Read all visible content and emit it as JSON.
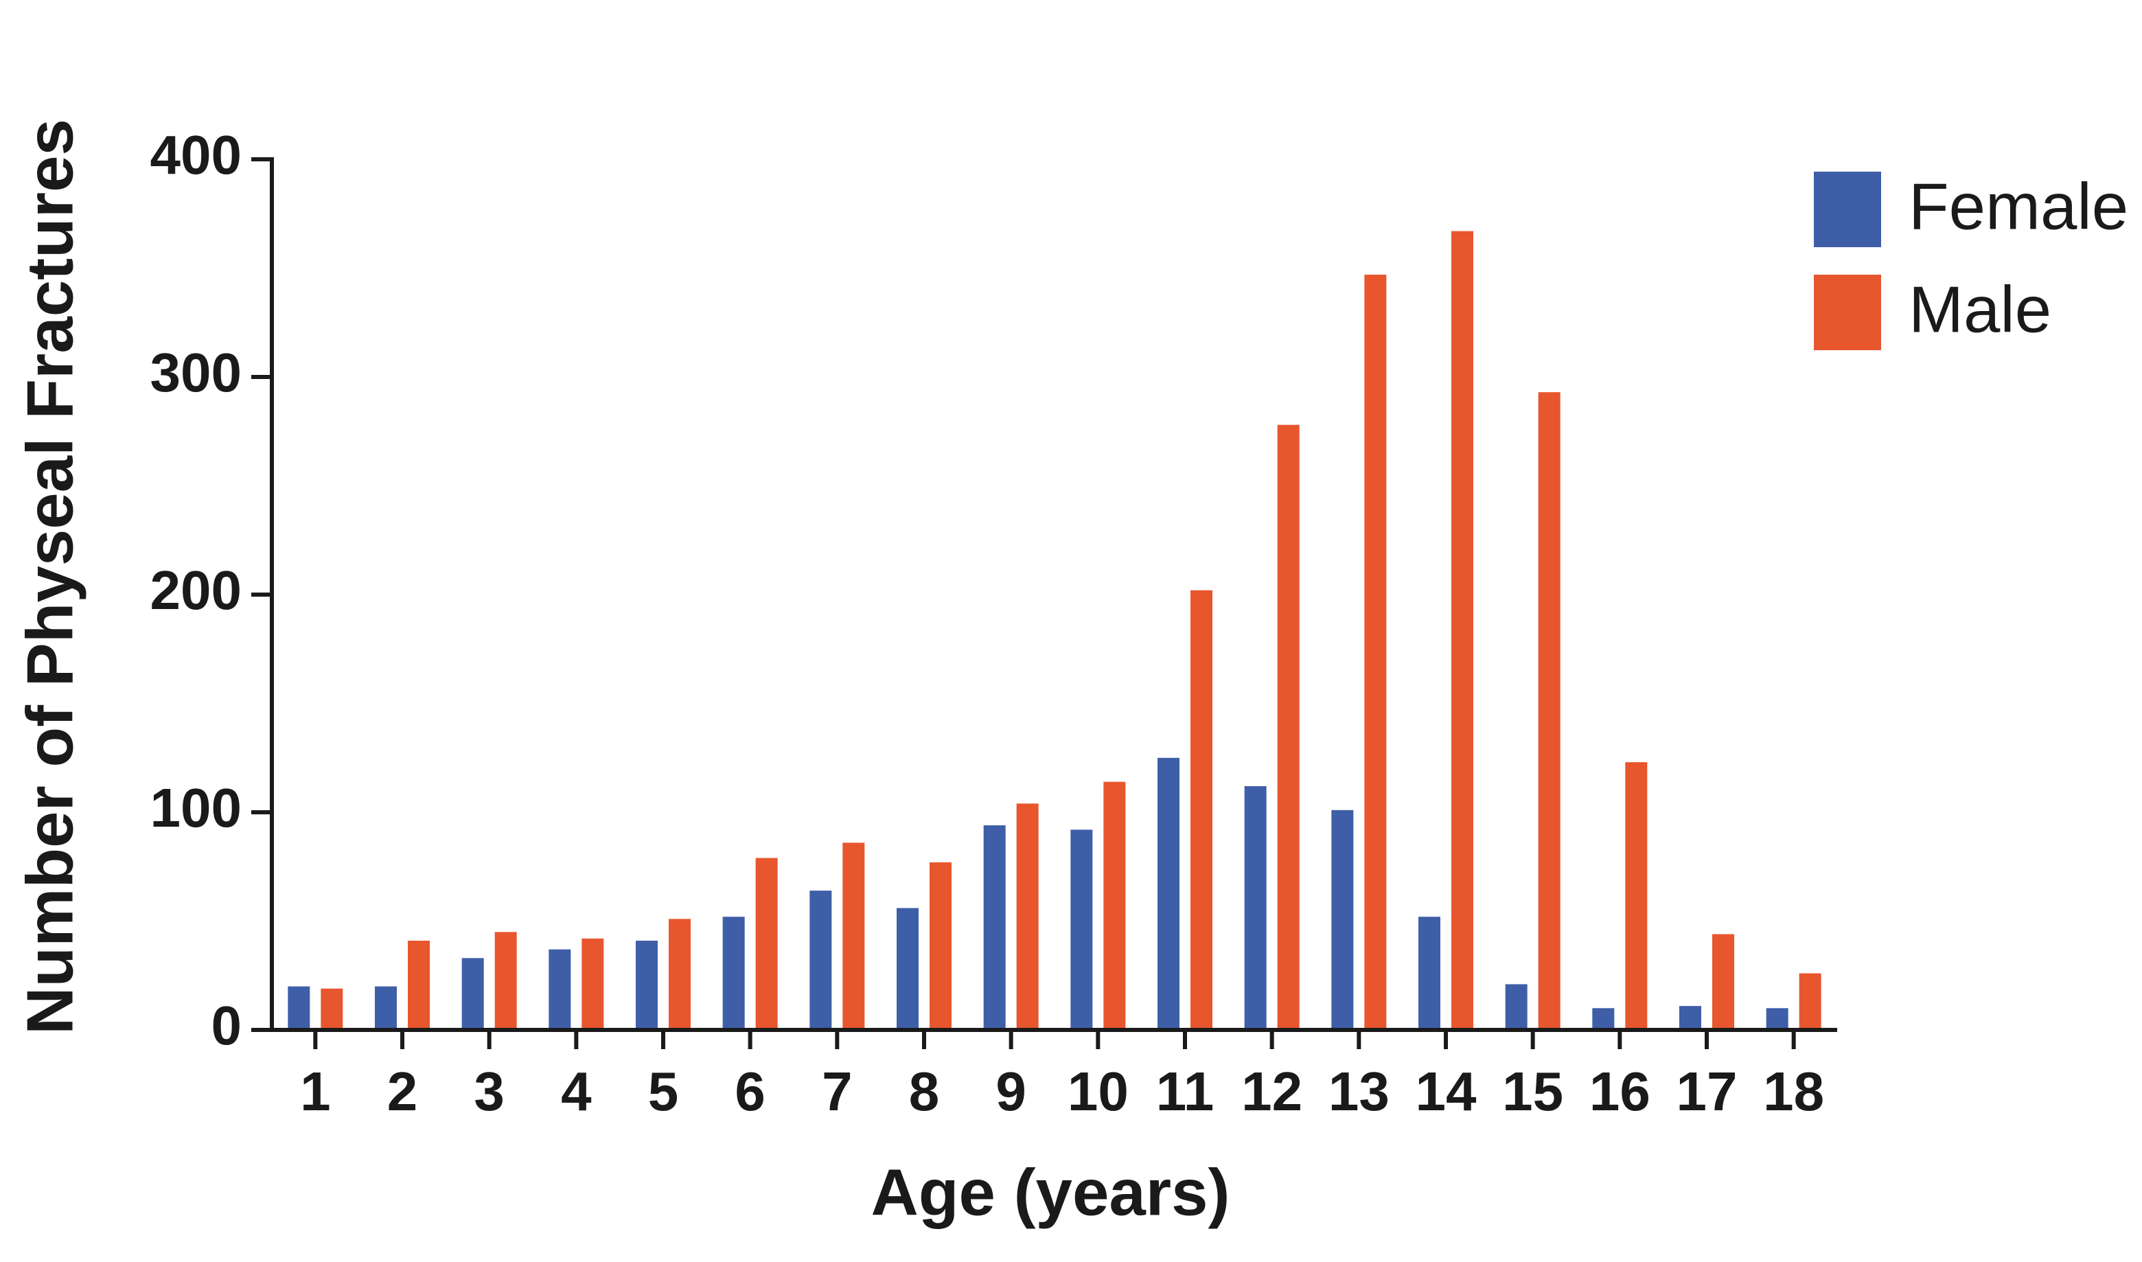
{
  "chart_data": {
    "type": "bar",
    "x_label": "Age (years)",
    "y_label": "Number of Physeal Fractures",
    "categories": [
      "1",
      "2",
      "3",
      "4",
      "5",
      "6",
      "7",
      "8",
      "9",
      "10",
      "11",
      "12",
      "13",
      "14",
      "15",
      "16",
      "17",
      "18"
    ],
    "series": [
      {
        "name": "Female",
        "color": "#3f5ea8",
        "values": [
          20,
          20,
          33,
          37,
          41,
          52,
          64,
          56,
          94,
          92,
          125,
          112,
          101,
          52,
          21,
          10,
          11,
          10
        ]
      },
      {
        "name": "Male",
        "color": "#e8562e",
        "values": [
          19,
          41,
          45,
          42,
          51,
          79,
          86,
          77,
          104,
          114,
          202,
          278,
          347,
          367,
          293,
          123,
          44,
          26
        ]
      }
    ],
    "ylim": [
      0,
      400
    ],
    "yticks": [
      0,
      100,
      200,
      300,
      400
    ],
    "legend": "top-right"
  }
}
